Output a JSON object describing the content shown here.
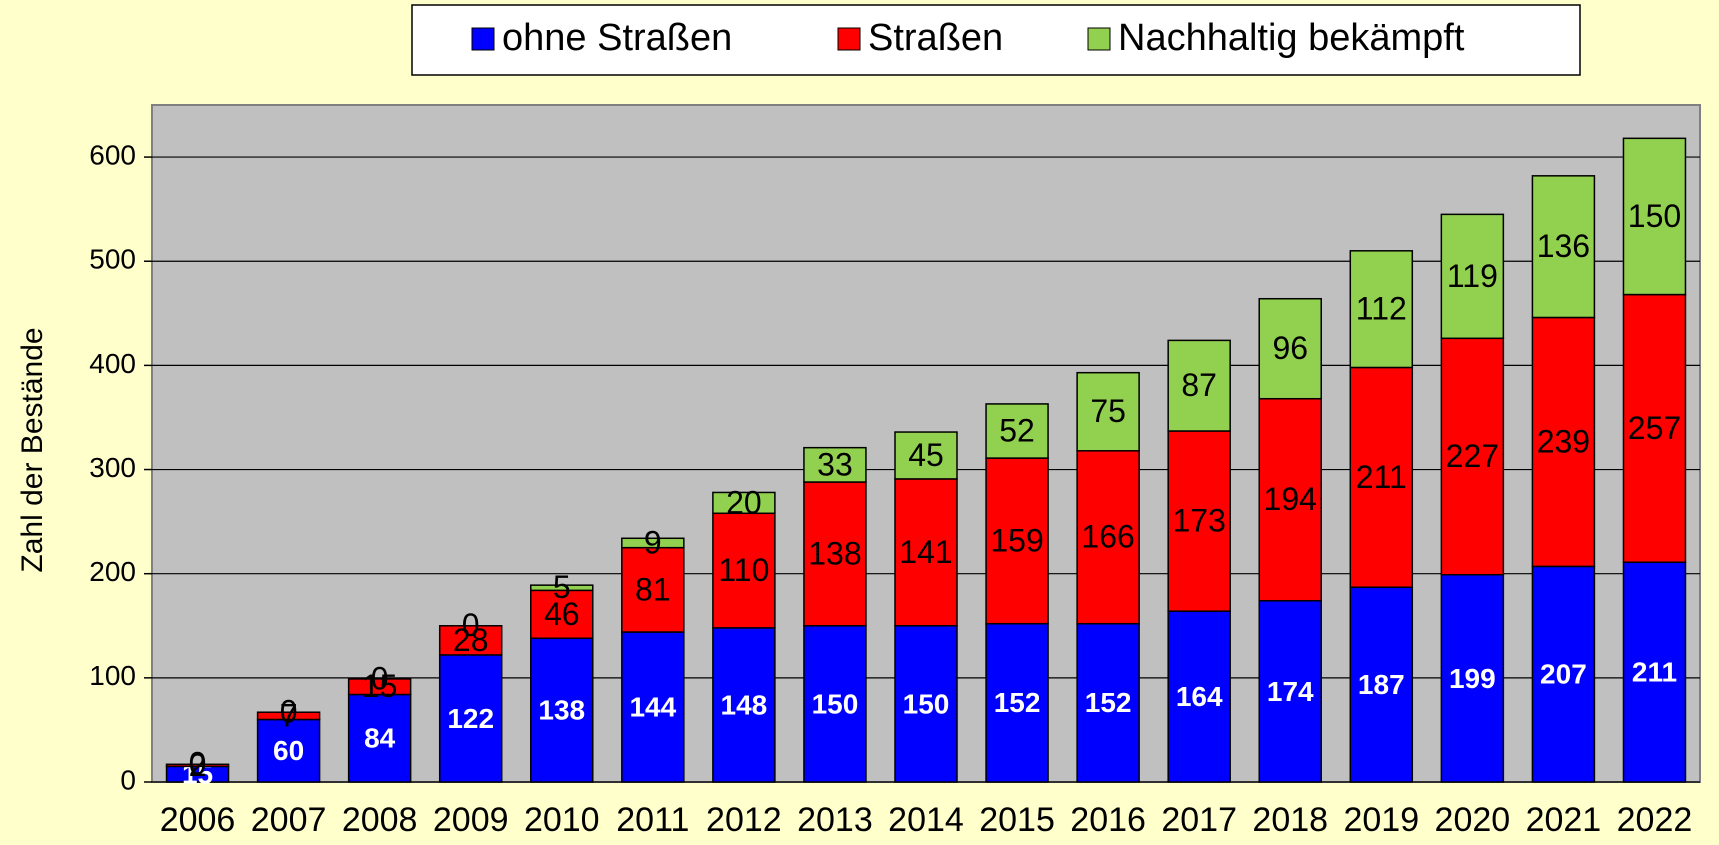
{
  "chart_data": {
    "type": "stacked_bar",
    "y_label": "Zahl der Bestände",
    "categories": [
      "2006",
      "2007",
      "2008",
      "2009",
      "2010",
      "2011",
      "2012",
      "2013",
      "2014",
      "2015",
      "2016",
      "2017",
      "2018",
      "2019",
      "2020",
      "2021",
      "2022"
    ],
    "series": [
      {
        "name": "ohne Straßen",
        "color": "#0000ff",
        "label_color": "#ffffff",
        "values": [
          15,
          60,
          84,
          122,
          138,
          144,
          148,
          150,
          150,
          152,
          152,
          164,
          174,
          187,
          199,
          207,
          211
        ]
      },
      {
        "name": "Straßen",
        "color": "#ff0000",
        "label_color": "#000000",
        "values": [
          2,
          7,
          15,
          28,
          46,
          81,
          110,
          138,
          141,
          159,
          166,
          173,
          194,
          211,
          227,
          239,
          257
        ]
      },
      {
        "name": "Nachhaltig bekämpft",
        "color": "#92d050",
        "label_color": "#000000",
        "values": [
          0,
          0,
          0,
          0,
          5,
          9,
          20,
          33,
          45,
          52,
          75,
          87,
          96,
          112,
          119,
          136,
          150
        ]
      }
    ],
    "ylim": [
      0,
      650
    ],
    "yticks": [
      0,
      100,
      200,
      300,
      400,
      500,
      600
    ],
    "grid": true,
    "legend": "top"
  }
}
